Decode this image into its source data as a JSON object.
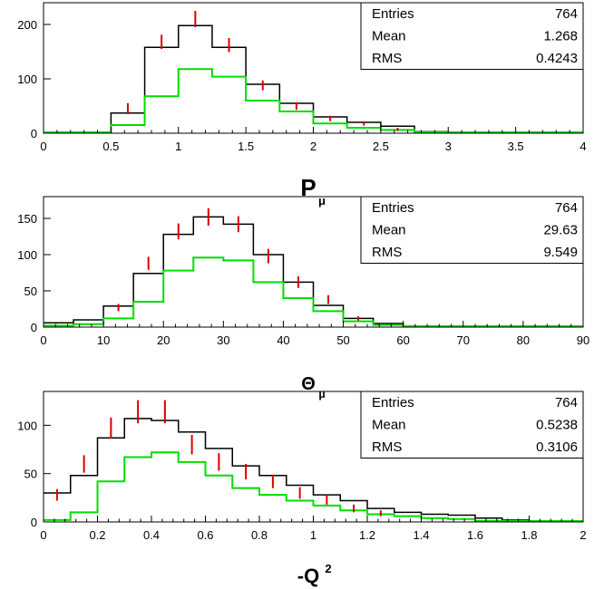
{
  "chart_data": [
    {
      "type": "histogram",
      "xlabel": "P",
      "xlabel_sub": "μ",
      "xlim": [
        0,
        4
      ],
      "ylim": [
        0,
        240
      ],
      "xticks": [
        0,
        0.5,
        1,
        1.5,
        2,
        2.5,
        3,
        3.5,
        4
      ],
      "xtick_labels": [
        "0",
        "0.5",
        "1",
        "1.5",
        "2",
        "2.5",
        "3",
        "3.5",
        "4"
      ],
      "yticks": [
        0,
        100,
        200
      ],
      "ytick_labels": [
        "0",
        "100",
        "200"
      ],
      "stats": {
        "labels": [
          "Entries",
          "Mean",
          "RMS"
        ],
        "values": [
          "764",
          "1.268",
          "0.4243"
        ]
      },
      "bin_edges": [
        0,
        0.25,
        0.5,
        0.75,
        1,
        1.25,
        1.5,
        1.75,
        2,
        2.25,
        2.5,
        2.75,
        3,
        3.25,
        3.5,
        3.75,
        4
      ],
      "series": [
        {
          "color": "#000000",
          "values": [
            0,
            0,
            37,
            158,
            198,
            158,
            90,
            55,
            30,
            20,
            13,
            3,
            0,
            0,
            0,
            0
          ]
        },
        {
          "color": "#00dd00",
          "values": [
            0,
            0,
            15,
            68,
            118,
            104,
            60,
            40,
            18,
            10,
            6,
            2,
            0,
            0,
            0,
            0
          ]
        },
        {
          "color": "#dd0000",
          "kind": "errorbars",
          "x": [
            0.625,
            0.875,
            1.125,
            1.375,
            1.625,
            1.875,
            2.125,
            2.375,
            2.625
          ],
          "y": [
            45,
            168,
            210,
            162,
            88,
            50,
            27,
            18,
            7
          ],
          "err": [
            10,
            13,
            15,
            13,
            9,
            7,
            5,
            4,
            3
          ]
        }
      ]
    },
    {
      "type": "histogram",
      "xlabel": "Θ",
      "xlabel_sub": "μ",
      "xlim": [
        0,
        90
      ],
      "ylim": [
        0,
        180
      ],
      "xticks": [
        0,
        10,
        20,
        30,
        40,
        50,
        60,
        70,
        80,
        90
      ],
      "xtick_labels": [
        "0",
        "10",
        "20",
        "30",
        "40",
        "50",
        "60",
        "70",
        "80",
        "90"
      ],
      "yticks": [
        0,
        50,
        100,
        150
      ],
      "ytick_labels": [
        "0",
        "50",
        "100",
        "150"
      ],
      "stats": {
        "labels": [
          "Entries",
          "Mean",
          "RMS"
        ],
        "values": [
          "764",
          "29.63",
          "9.549"
        ]
      },
      "bin_edges": [
        0,
        5,
        10,
        15,
        20,
        25,
        30,
        35,
        40,
        45,
        50,
        55,
        60,
        65,
        70,
        75,
        80,
        85,
        90
      ],
      "series": [
        {
          "color": "#000000",
          "values": [
            6,
            10,
            29,
            74,
            128,
            152,
            142,
            100,
            62,
            30,
            12,
            5,
            0,
            0,
            0,
            0,
            0,
            0
          ]
        },
        {
          "color": "#00dd00",
          "values": [
            2,
            4,
            12,
            35,
            78,
            96,
            92,
            62,
            40,
            22,
            8,
            3,
            0,
            0,
            0,
            0,
            0,
            0
          ]
        },
        {
          "color": "#dd0000",
          "kind": "errorbars",
          "x": [
            12.5,
            17.5,
            22.5,
            27.5,
            32.5,
            37.5,
            42.5,
            47.5,
            52.5
          ],
          "y": [
            27,
            88,
            132,
            152,
            142,
            98,
            62,
            38,
            12
          ],
          "err": [
            5,
            9,
            11,
            12,
            11,
            10,
            8,
            6,
            3
          ]
        }
      ]
    },
    {
      "type": "histogram",
      "xlabel": "-Q",
      "xlabel_sup": "2",
      "xlim": [
        0,
        2
      ],
      "ylim": [
        0,
        135
      ],
      "xticks": [
        0,
        0.2,
        0.4,
        0.6,
        0.8,
        1,
        1.2,
        1.4,
        1.6,
        1.8,
        2
      ],
      "xtick_labels": [
        "0",
        "0.2",
        "0.4",
        "0.6",
        "0.8",
        "1",
        "1.2",
        "1.4",
        "1.6",
        "1.8",
        "2"
      ],
      "yticks": [
        0,
        50,
        100
      ],
      "ytick_labels": [
        "0",
        "50",
        "100"
      ],
      "stats": {
        "labels": [
          "Entries",
          "Mean",
          "RMS"
        ],
        "values": [
          "764",
          "0.5238",
          "0.3106"
        ]
      },
      "bin_edges": [
        0,
        0.1,
        0.2,
        0.3,
        0.4,
        0.5,
        0.6,
        0.7,
        0.8,
        0.9,
        1.0,
        1.1,
        1.2,
        1.3,
        1.4,
        1.5,
        1.6,
        1.7,
        1.8,
        1.9,
        2.0
      ],
      "series": [
        {
          "color": "#000000",
          "values": [
            30,
            48,
            87,
            107,
            105,
            93,
            76,
            58,
            48,
            38,
            28,
            22,
            14,
            10,
            8,
            7,
            4,
            2,
            1,
            0
          ]
        },
        {
          "color": "#00dd00",
          "values": [
            2,
            10,
            42,
            67,
            72,
            62,
            48,
            35,
            28,
            22,
            17,
            12,
            8,
            6,
            4,
            3,
            1,
            1,
            0,
            0
          ]
        },
        {
          "color": "#dd0000",
          "kind": "errorbars",
          "x": [
            0.05,
            0.15,
            0.25,
            0.35,
            0.45,
            0.55,
            0.65,
            0.75,
            0.85,
            0.95,
            1.05,
            1.15,
            1.25
          ],
          "y": [
            28,
            60,
            97,
            114,
            114,
            80,
            62,
            52,
            42,
            30,
            23,
            14,
            9
          ],
          "err": [
            6,
            9,
            11,
            12,
            12,
            10,
            9,
            8,
            7,
            6,
            5,
            4,
            3
          ]
        }
      ]
    }
  ]
}
